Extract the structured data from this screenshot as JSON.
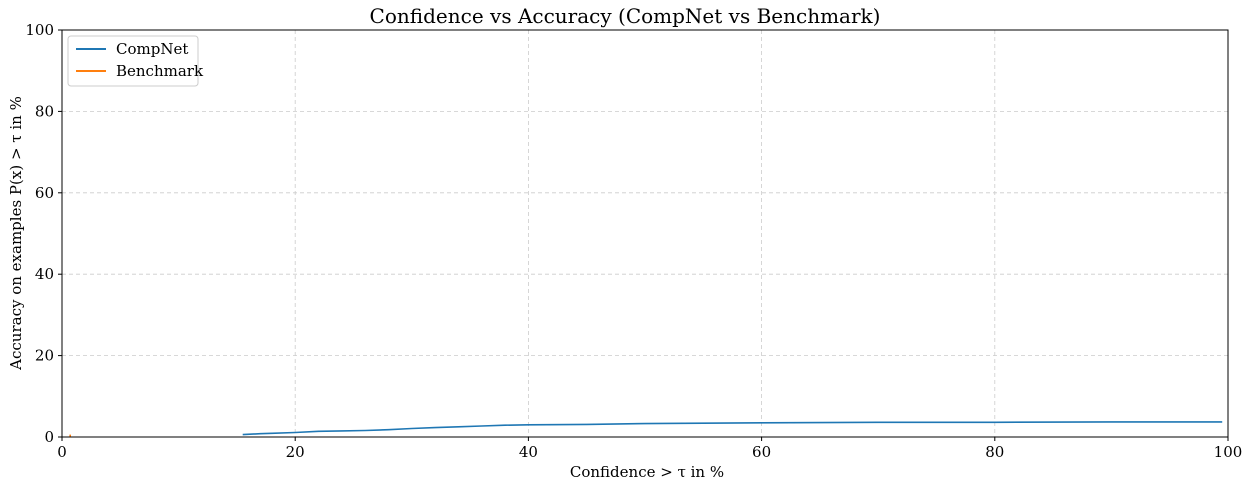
{
  "chart_data": {
    "type": "line",
    "title": "Confidence vs Accuracy (CompNet vs Benchmark)",
    "xlabel": "Confidence > τ in %",
    "ylabel": "Accuracy on examples P(x) > τ in %",
    "xlim": [
      0,
      100
    ],
    "ylim": [
      0,
      100
    ],
    "xticks": [
      0,
      20,
      40,
      60,
      80,
      100
    ],
    "yticks": [
      0,
      20,
      40,
      60,
      80,
      100
    ],
    "grid": true,
    "legend_position": "top-left",
    "series": [
      {
        "name": "CompNet",
        "color": "#1f77b4",
        "x": [
          15.5,
          17,
          18,
          20,
          22,
          24,
          26,
          28,
          30,
          32,
          34,
          36,
          38,
          40,
          45,
          50,
          55,
          60,
          70,
          80,
          90,
          99.5
        ],
        "y": [
          0.6,
          0.8,
          0.9,
          1.1,
          1.4,
          1.5,
          1.6,
          1.8,
          2.1,
          2.3,
          2.5,
          2.7,
          2.9,
          3.0,
          3.1,
          3.3,
          3.4,
          3.5,
          3.6,
          3.6,
          3.7,
          3.7
        ]
      },
      {
        "name": "Benchmark",
        "color": "#ff7f0e",
        "x": [
          0.7,
          0.7
        ],
        "y": [
          0.0,
          0.6
        ]
      }
    ]
  }
}
